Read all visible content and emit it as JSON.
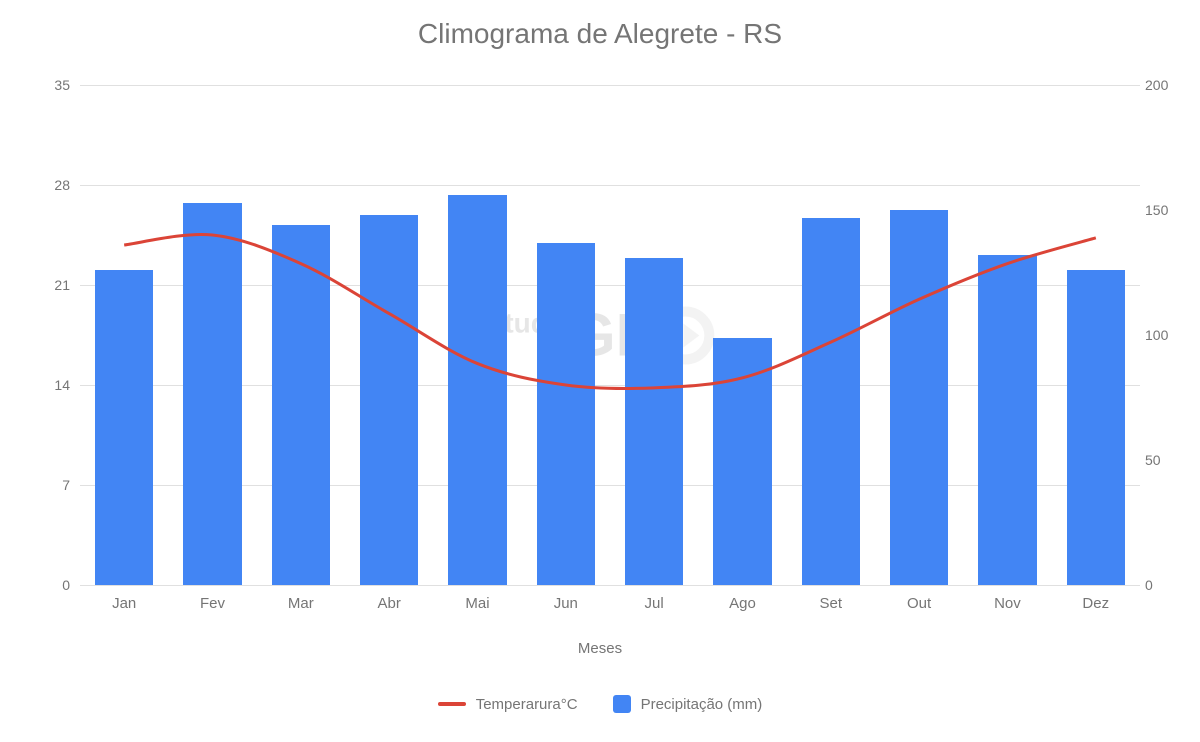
{
  "chart": {
    "type": "combo-bar-line",
    "title": "Climograma de Alegrete - RS",
    "title_fontsize": 28,
    "title_color": "#757575",
    "background_color": "#ffffff",
    "grid_color": "#e0e0e0",
    "axis_label_color": "#757575",
    "axis_fontsize": 14,
    "x_axis_title": "Meses",
    "categories": [
      "Jan",
      "Fev",
      "Mar",
      "Abr",
      "Mai",
      "Jun",
      "Jul",
      "Ago",
      "Set",
      "Out",
      "Nov",
      "Dez"
    ],
    "y_left": {
      "min": 0,
      "max": 35,
      "step": 7,
      "ticks": [
        0,
        7,
        14,
        21,
        28,
        35
      ]
    },
    "y_right": {
      "min": 0,
      "max": 200,
      "step": 50,
      "ticks": [
        0,
        50,
        100,
        150,
        200
      ]
    },
    "bars": {
      "label": "Precipitação (mm)",
      "values": [
        126,
        153,
        144,
        148,
        156,
        137,
        131,
        99,
        147,
        150,
        132,
        126
      ],
      "color": "#4285f4",
      "axis": "right",
      "bar_width_ratio": 0.66
    },
    "line": {
      "label": "Temperarura°C",
      "values": [
        23.8,
        24.5,
        22.5,
        19,
        15.5,
        14,
        13.8,
        14.5,
        17,
        20,
        22.5,
        24.3
      ],
      "color": "#db4437",
      "line_width": 3,
      "axis": "left"
    },
    "legend": {
      "position": "bottom",
      "items": [
        {
          "type": "line",
          "label_ref": "line"
        },
        {
          "type": "box",
          "label_ref": "bars"
        }
      ]
    },
    "watermark": {
      "text_small": "tudo",
      "text_big": "GE",
      "color": "#cfcfcf"
    }
  }
}
